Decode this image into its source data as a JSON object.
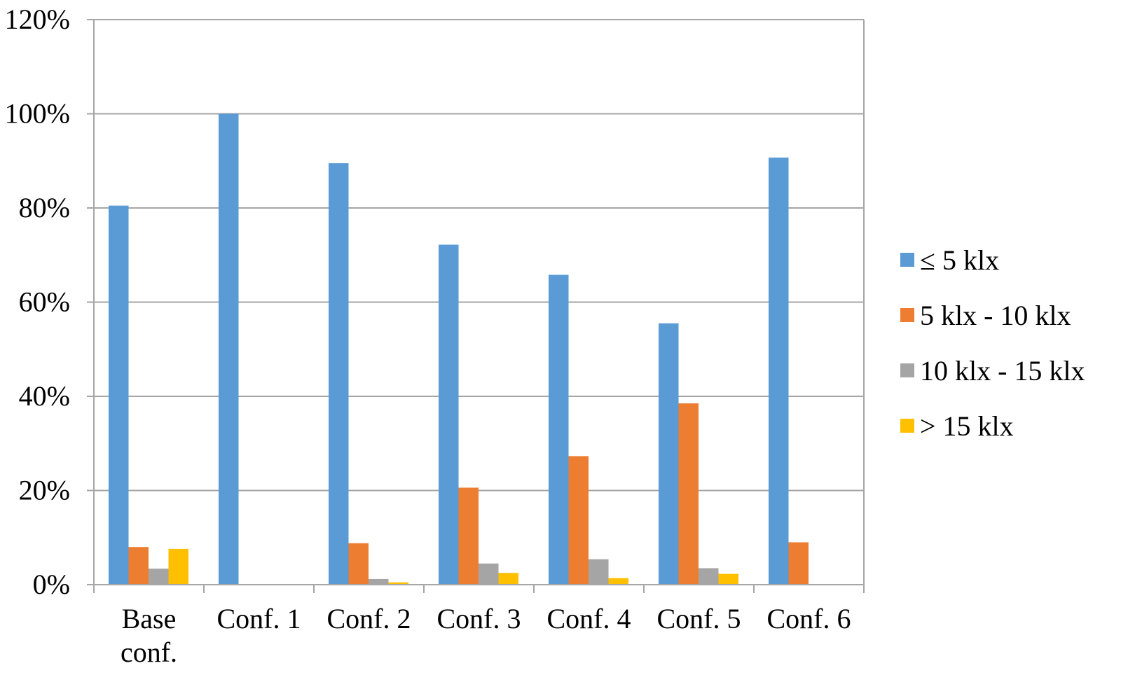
{
  "chart_data": {
    "type": "bar",
    "categories": [
      [
        "Base",
        "conf."
      ],
      [
        "Conf. 1"
      ],
      [
        "Conf. 2"
      ],
      [
        "Conf. 3"
      ],
      [
        "Conf. 4"
      ],
      [
        "Conf. 5"
      ],
      [
        "Conf. 6"
      ]
    ],
    "series": [
      {
        "name": "≤ 5 klx",
        "color": "#5B9BD5",
        "values": [
          80.5,
          100.0,
          89.5,
          72.2,
          65.8,
          55.5,
          90.7
        ]
      },
      {
        "name": "5 klx - 10 klx",
        "color": "#ED7D31",
        "values": [
          8.0,
          0.0,
          8.8,
          20.6,
          27.3,
          38.5,
          9.0
        ]
      },
      {
        "name": "10 klx - 15 klx",
        "color": "#A5A5A5",
        "values": [
          3.4,
          0.0,
          1.2,
          4.5,
          5.4,
          3.5,
          0.0
        ]
      },
      {
        "name": "> 15 klx",
        "color": "#FFC000",
        "values": [
          7.6,
          0.0,
          0.5,
          2.5,
          1.4,
          2.3,
          0.0
        ]
      }
    ],
    "y_ticks": [
      "0%",
      "20%",
      "40%",
      "60%",
      "80%",
      "100%",
      "120%"
    ],
    "ylim": [
      0,
      120
    ],
    "ylabel": "",
    "xlabel": "",
    "title": "",
    "grid": true,
    "legend_position": "right"
  }
}
